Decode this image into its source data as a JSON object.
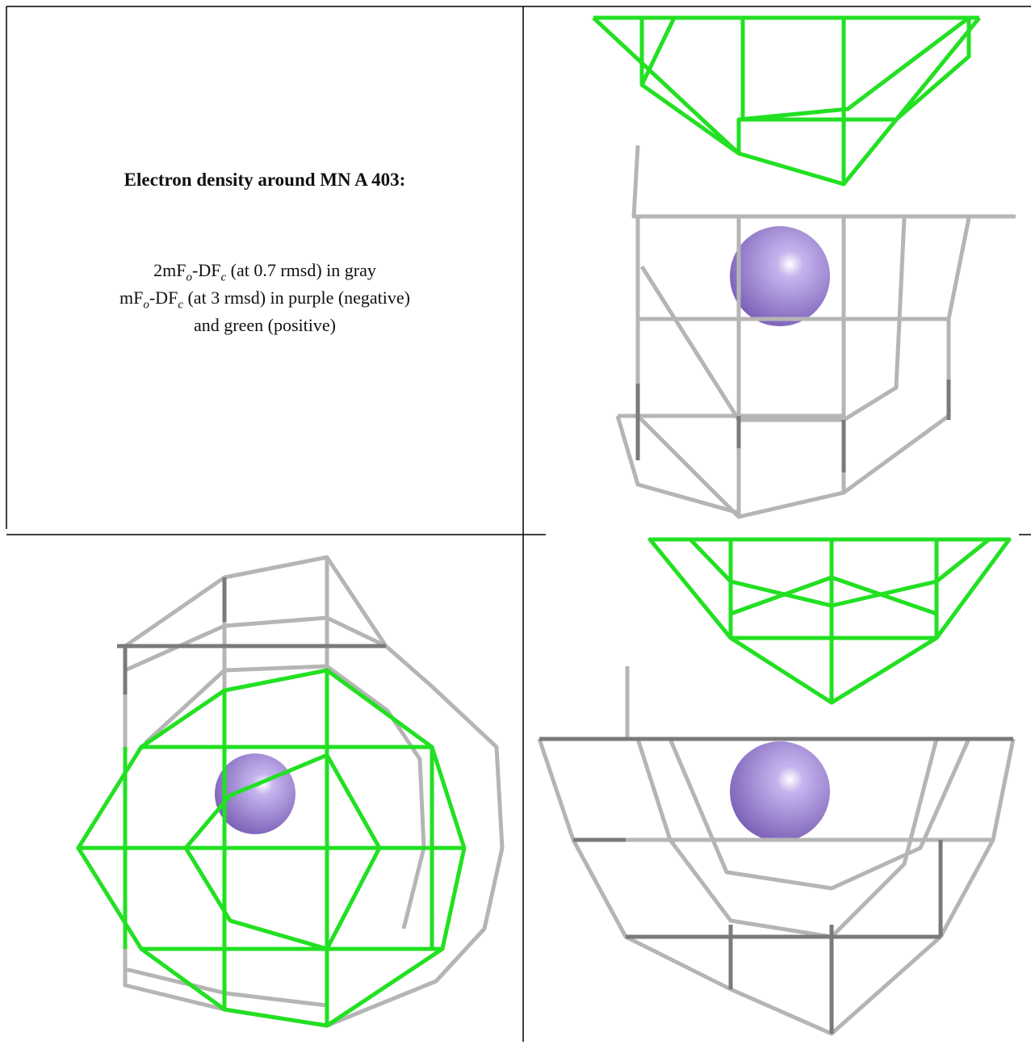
{
  "caption": {
    "title": "Electron density around MN A 403:",
    "line1": [
      "2mF",
      "o",
      "-DF",
      "c",
      " (at 0.7 rmsd) in gray"
    ],
    "line2": [
      "mF",
      "o",
      "-DF",
      "c",
      " (at 3 rmsd) in purple (negative)"
    ],
    "line3": "and green (positive)"
  }
}
